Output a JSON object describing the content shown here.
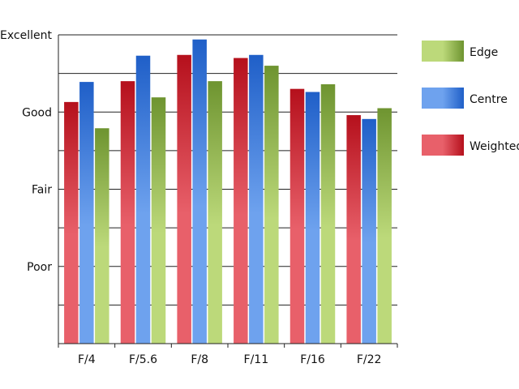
{
  "chart_data": {
    "type": "bar",
    "categories": [
      "F/4",
      "F/5.6",
      "F/8",
      "F/11",
      "F/16",
      "F/22"
    ],
    "y_tick_labels": [
      "Poor",
      "Fair",
      "Good",
      "Excellent"
    ],
    "y_tick_values": [
      1,
      2,
      3,
      4
    ],
    "ylim": [
      0,
      4
    ],
    "grid": true,
    "legend_placement": "right",
    "legend_order": [
      "Edge",
      "Centre",
      "Weighted"
    ],
    "series": [
      {
        "name": "Weighted",
        "values": [
          3.13,
          3.4,
          3.74,
          3.7,
          3.3,
          2.96
        ],
        "color_dark": "#b5101c",
        "color_light": "#e8606a"
      },
      {
        "name": "Centre",
        "values": [
          3.39,
          3.73,
          3.94,
          3.74,
          3.26,
          2.91
        ],
        "color_dark": "#1f5fc8",
        "color_light": "#6ea2ee"
      },
      {
        "name": "Edge",
        "values": [
          2.79,
          3.19,
          3.4,
          3.6,
          3.36,
          3.05
        ],
        "color_dark": "#6e9430",
        "color_light": "#bcd97a"
      }
    ]
  }
}
